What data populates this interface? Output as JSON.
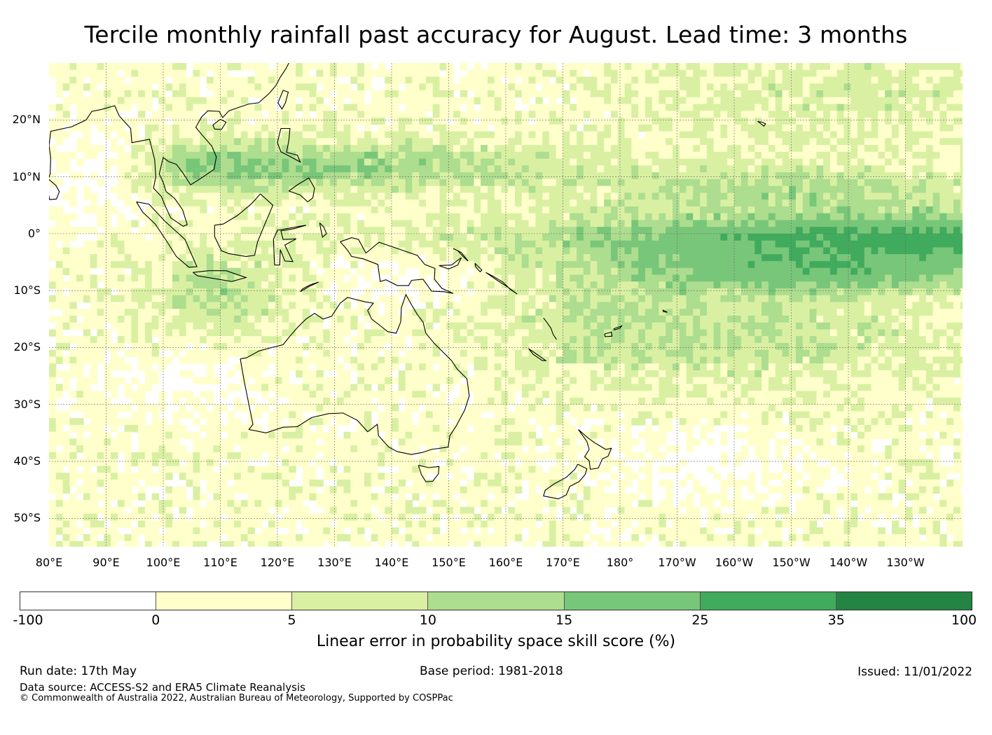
{
  "title": "Tercile monthly rainfall past accuracy for August. Lead time: 3 months",
  "map": {
    "lat_labels": [
      "20°N",
      "10°N",
      "0°",
      "10°S",
      "20°S",
      "30°S",
      "40°S",
      "50°S"
    ],
    "lon_labels": [
      "80°E",
      "90°E",
      "100°E",
      "110°E",
      "120°E",
      "130°E",
      "140°E",
      "150°E",
      "160°E",
      "170°E",
      "180°",
      "170°W",
      "160°W",
      "150°W",
      "140°W",
      "130°W"
    ],
    "lon_range": [
      80,
      240
    ],
    "lat_range": [
      -55,
      30
    ]
  },
  "colorbar": {
    "ticks": [
      "-100",
      "0",
      "5",
      "10",
      "15",
      "25",
      "35",
      "100"
    ],
    "colors": [
      "#ffffff",
      "#ffffcc",
      "#d9f0a3",
      "#addd8e",
      "#78c679",
      "#41ab5d",
      "#238443"
    ],
    "label": "Linear error in probability space skill score (%)"
  },
  "footer": {
    "run_date": "Run date: 17th May",
    "base_period": "Base period: 1981-2018",
    "issued": "Issued: 11/01/2022",
    "data_source": "Data source: ACCESS-S2 and ERA5 Climate Reanalysis",
    "copyright": "© Commonwealth of Australia 2022, Australian Bureau of Meteorology, Supported by COSPPac"
  }
}
